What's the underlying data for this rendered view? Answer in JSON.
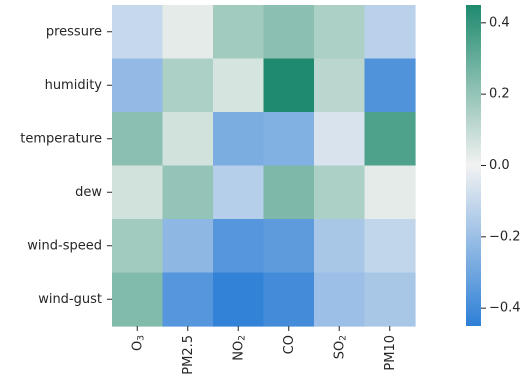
{
  "chart_data": {
    "type": "heatmap",
    "title": "",
    "xlabel": "",
    "ylabel": "",
    "rows": [
      "pressure",
      "humidity",
      "temperature",
      "dew",
      "wind-speed",
      "wind-gust"
    ],
    "columns": [
      {
        "base": "O",
        "sub": "3"
      },
      {
        "base": "PM2.5",
        "sub": ""
      },
      {
        "base": "NO",
        "sub": "2"
      },
      {
        "base": "CO",
        "sub": ""
      },
      {
        "base": "SO",
        "sub": "2"
      },
      {
        "base": "PM10",
        "sub": ""
      }
    ],
    "values": [
      [
        -0.1,
        0.03,
        0.17,
        0.22,
        0.15,
        -0.13
      ],
      [
        -0.22,
        0.15,
        0.06,
        0.45,
        0.12,
        -0.37
      ],
      [
        0.22,
        0.07,
        -0.27,
        -0.26,
        -0.06,
        0.35
      ],
      [
        0.07,
        0.2,
        -0.14,
        0.25,
        0.15,
        0.03
      ],
      [
        0.17,
        -0.23,
        -0.36,
        -0.34,
        -0.17,
        -0.11
      ],
      [
        0.24,
        -0.36,
        -0.44,
        -0.4,
        -0.2,
        -0.17
      ]
    ],
    "colorbar": {
      "vmin": -0.45,
      "vmax": 0.45,
      "ticks": [
        0.4,
        0.2,
        0.0,
        -0.2,
        -0.4
      ],
      "tick_labels": [
        "0.4",
        "0.2",
        "0.0",
        "−0.2",
        "−0.4"
      ]
    },
    "colormap": {
      "negative_end": "#2e7fd6",
      "center": "#f2f2f2",
      "positive_end": "#1f8a6e"
    }
  }
}
